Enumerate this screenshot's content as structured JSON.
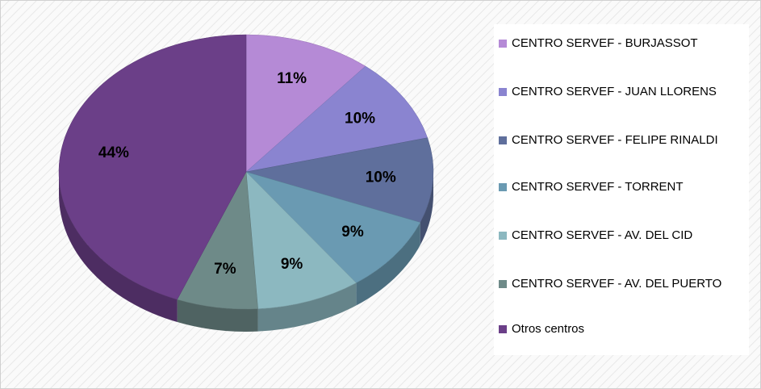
{
  "chart_data": {
    "type": "pie",
    "categories": [
      "CENTRO SERVEF - BURJASSOT",
      "CENTRO SERVEF - JUAN LLORENS",
      "CENTRO SERVEF - FELIPE RINALDI",
      "CENTRO SERVEF - TORRENT",
      "CENTRO SERVEF - AV. DEL CID",
      "CENTRO SERVEF - AV. DEL PUERTO",
      "Otros centros"
    ],
    "values": [
      11,
      10,
      10,
      9,
      9,
      7,
      44
    ],
    "value_labels": [
      "11%",
      "10%",
      "10%",
      "9%",
      "9%",
      "7%",
      "44%"
    ],
    "colors": [
      "#b58ad6",
      "#8a84d0",
      "#5f6f9c",
      "#6a9ab2",
      "#8cb8c0",
      "#6e8a88",
      "#6b3f88"
    ],
    "legend": "right"
  }
}
